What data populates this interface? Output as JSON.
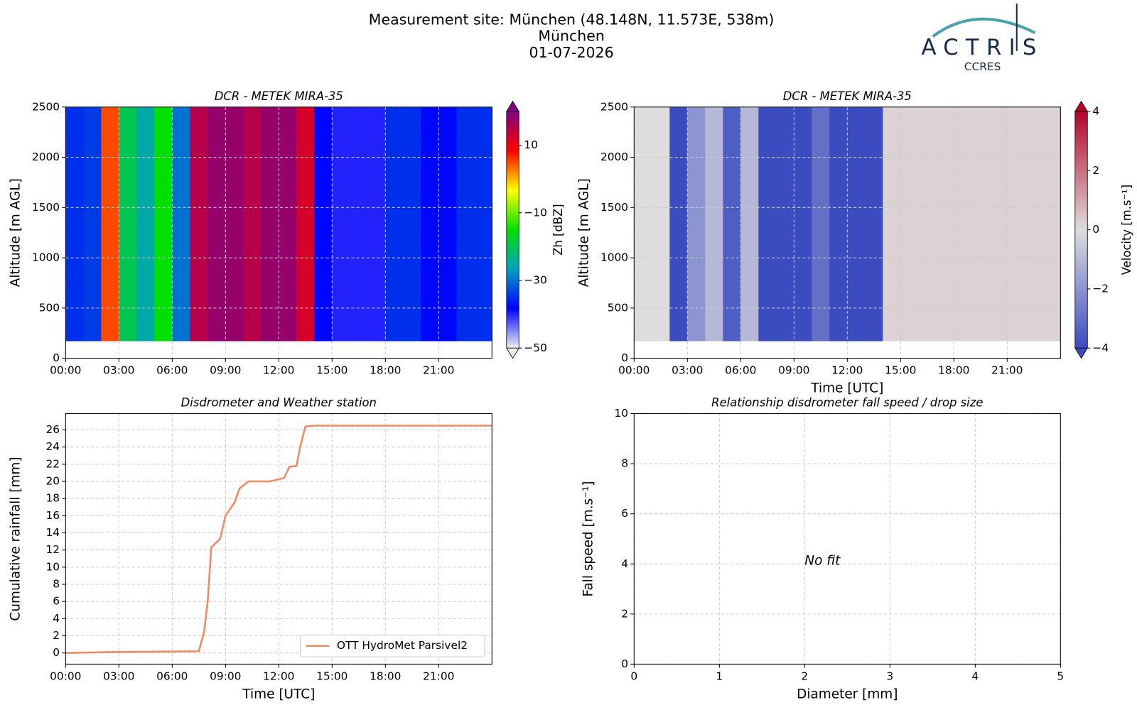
{
  "header": {
    "title_lines": [
      "Measurement site: München (48.148N, 11.573E, 538m)",
      "München",
      "01-07-2026"
    ],
    "logo": "ACTRIS",
    "logo_sub": "CCRES"
  },
  "chart_data": [
    {
      "type": "heatmap",
      "title": "DCR - METEK MIRA-35",
      "ylabel": "Altitude [m AGL]",
      "x": [
        0,
        1,
        2,
        3,
        4,
        5,
        6,
        7,
        8,
        9,
        10,
        11,
        12,
        13,
        14,
        15,
        16,
        17,
        18,
        19,
        20,
        21,
        22,
        23
      ],
      "values": [
        -35,
        -34,
        5,
        -20,
        -25,
        -15,
        -30,
        15,
        18,
        18,
        15,
        18,
        18,
        12,
        -38,
        -40,
        -40,
        -40,
        -35,
        -35,
        -38,
        -38,
        -35,
        -35
      ],
      "altitude_range": [
        170,
        2500
      ],
      "xlim": [
        0,
        24
      ],
      "xticks": [
        {
          "value": 0,
          "label": "00:00"
        },
        {
          "value": 3,
          "label": "03:00"
        },
        {
          "value": 6,
          "label": "06:00"
        },
        {
          "value": 9,
          "label": "09:00"
        },
        {
          "value": 12,
          "label": "12:00"
        },
        {
          "value": 15,
          "label": "15:00"
        },
        {
          "value": 18,
          "label": "18:00"
        },
        {
          "value": 21,
          "label": "21:00"
        }
      ],
      "ylim": [
        0,
        2500
      ],
      "yticks": [
        0,
        500,
        1000,
        1500,
        2000,
        2500
      ],
      "grid": true,
      "colorbar": {
        "label": "Zh [dBZ]",
        "lim": [
          -50,
          20
        ],
        "ticks": [
          {
            "value": -50,
            "label": "−50"
          },
          {
            "value": -30,
            "label": "−30"
          },
          {
            "value": -10,
            "label": "−10"
          },
          10
        ],
        "colormap": [
          "#eeeeee",
          "#0000ff",
          "#00a0c0",
          "#00e000",
          "#ffff00",
          "#ff0000",
          "#800080"
        ]
      }
    },
    {
      "type": "heatmap",
      "title": "DCR - METEK MIRA-35",
      "ylabel": "Altitude [m AGL]",
      "xlabel": "Time [UTC]",
      "x": [
        0,
        1,
        2,
        3,
        4,
        5,
        6,
        7,
        8,
        9,
        10,
        11,
        12,
        13,
        14,
        15,
        16,
        17,
        18,
        19,
        20,
        21,
        22,
        23
      ],
      "values": [
        0,
        0,
        -4,
        -2,
        -1,
        -3.5,
        -1,
        -4,
        -4,
        -4,
        -3,
        -4,
        -4,
        -4,
        0.2,
        0.2,
        0.2,
        0.2,
        0.2,
        0.2,
        0.2,
        0.2,
        0.2,
        0.2
      ],
      "altitude_range": [
        170,
        2500
      ],
      "xlim": [
        0,
        24
      ],
      "xticks": [
        {
          "value": 0,
          "label": "00:00"
        },
        {
          "value": 3,
          "label": "03:00"
        },
        {
          "value": 6,
          "label": "06:00"
        },
        {
          "value": 9,
          "label": "09:00"
        },
        {
          "value": 12,
          "label": "12:00"
        },
        {
          "value": 15,
          "label": "15:00"
        },
        {
          "value": 18,
          "label": "18:00"
        },
        {
          "value": 21,
          "label": "21:00"
        }
      ],
      "ylim": [
        0,
        2500
      ],
      "yticks": [
        0,
        500,
        1000,
        1500,
        2000,
        2500
      ],
      "grid": true,
      "colorbar": {
        "label": "Velocity [m.s⁻¹]",
        "lim": [
          -4,
          4
        ],
        "ticks": [
          {
            "value": -4,
            "label": "−4"
          },
          {
            "value": -2,
            "label": "−2"
          },
          0,
          2,
          4
        ],
        "colormap": [
          "#3b4cc0",
          "#dddddd",
          "#b40426"
        ]
      }
    },
    {
      "type": "line",
      "title": "Disdrometer and Weather station",
      "ylabel": "Cumulative rainfall [mm]",
      "xlabel": "Time [UTC]",
      "x": [
        0,
        2.5,
        7.5,
        7.8,
        8,
        8.2,
        8.7,
        9,
        9.5,
        9.8,
        10.3,
        11.5,
        12.3,
        12.6,
        13,
        13.2,
        13.5,
        14,
        24
      ],
      "series": [
        {
          "name": "OTT HydroMet Parsivel2",
          "color": "#ef8a62",
          "values": [
            0,
            0.1,
            0.2,
            2.5,
            6,
            12.3,
            13.3,
            16,
            17.5,
            19.2,
            20,
            20,
            20.4,
            21.7,
            21.8,
            24,
            26.4,
            26.5,
            26.5
          ]
        }
      ],
      "xlim": [
        0,
        24
      ],
      "xticks": [
        {
          "value": 0,
          "label": "00:00"
        },
        {
          "value": 3,
          "label": "03:00"
        },
        {
          "value": 6,
          "label": "06:00"
        },
        {
          "value": 9,
          "label": "09:00"
        },
        {
          "value": 12,
          "label": "12:00"
        },
        {
          "value": 15,
          "label": "15:00"
        },
        {
          "value": 18,
          "label": "18:00"
        },
        {
          "value": 21,
          "label": "21:00"
        }
      ],
      "ylim": [
        -1.3,
        27.9
      ],
      "yticks": [
        0,
        2,
        4,
        6,
        8,
        10,
        12,
        14,
        16,
        18,
        20,
        22,
        24,
        26
      ],
      "grid": true,
      "legend": "lower right"
    },
    {
      "type": "scatter",
      "title": "Relationship disdrometer fall speed / drop size",
      "ylabel": "Fall speed [m.s⁻¹]",
      "xlabel": "Diameter [mm]",
      "annotation": "No fit",
      "xlim": [
        0,
        5
      ],
      "xticks": [
        0,
        1,
        2,
        3,
        4,
        5
      ],
      "ylim": [
        0,
        10
      ],
      "yticks": [
        0,
        2,
        4,
        6,
        8,
        10
      ],
      "grid": true
    }
  ]
}
